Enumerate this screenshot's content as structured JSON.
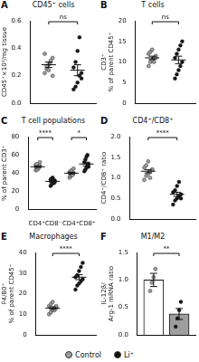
{
  "chart_data": [
    {
      "panel": "A",
      "type": "scatter",
      "title": "CD45⁺ cells",
      "y_label": [
        "CD45⁺×10³/mg tissue"
      ],
      "categories": [
        null
      ],
      "tick_labels": "y",
      "grid": false,
      "ylim": [
        0,
        0.6
      ],
      "yticks": [
        {
          "value": 0,
          "label": "0.0"
        },
        0.2,
        0.4,
        0.6
      ],
      "series": [
        {
          "name": "Control",
          "color": "#9e9e9e",
          "values": [
            [
              0.22,
              0.25,
              0.28,
              0.3,
              0.33,
              0.36,
              0.27,
              0.24,
              0.31,
              0.2
            ]
          ],
          "mean": [
            0.28
          ],
          "sem": [
            0.02
          ]
        },
        {
          "name": "Li⁺",
          "color": "#111111",
          "values": [
            [
              0.1,
              0.12,
              0.15,
              0.2,
              0.22,
              0.26,
              0.3,
              0.38,
              0.48,
              0.18
            ]
          ],
          "mean": [
            0.24
          ],
          "sem": [
            0.04
          ]
        }
      ],
      "significance": [
        "ns"
      ]
    },
    {
      "panel": "B",
      "type": "scatter",
      "title": "T cells",
      "y_label": [
        "CD3⁺",
        "% of parent CD45⁺"
      ],
      "categories": [
        null
      ],
      "tick_labels": "y",
      "grid": false,
      "ylim": [
        0,
        20
      ],
      "yticks": [
        0,
        5,
        10,
        15,
        20
      ],
      "series": [
        {
          "name": "Control",
          "color": "#9e9e9e",
          "values": [
            [
              9,
              10,
              10.5,
              11,
              11.5,
              12,
              12.5,
              13,
              10,
              11
            ]
          ],
          "mean": [
            11
          ],
          "sem": [
            0.4
          ]
        },
        {
          "name": "Li⁺",
          "color": "#111111",
          "values": [
            [
              6,
              7,
              8,
              9,
              10,
              11,
              12,
              13,
              14,
              15
            ]
          ],
          "mean": [
            10.5
          ],
          "sem": [
            0.9
          ]
        }
      ],
      "significance": [
        "ns"
      ]
    },
    {
      "panel": "C",
      "type": "scatter",
      "title": "T cell populations",
      "y_label": [
        "% of parent CD3⁺"
      ],
      "categories": [
        "CD4⁺CD8⁻",
        "CD4⁺CD8⁺"
      ],
      "grid": false,
      "ylim": [
        0,
        80
      ],
      "yticks": [
        0,
        20,
        40,
        60,
        80
      ],
      "series": [
        {
          "name": "Control",
          "color": "#9e9e9e",
          "values": [
            [
              43,
              45,
              46,
              47,
              48,
              49,
              50,
              44,
              46,
              52
            ],
            [
              35,
              37,
              38,
              39,
              40,
              41,
              42,
              43,
              38,
              45
            ]
          ],
          "mean": [
            47,
            40
          ],
          "sem": [
            0.8,
            0.9
          ]
        },
        {
          "name": "Li⁺",
          "color": "#111111",
          "values": [
            [
              26,
              28,
              30,
              31,
              32,
              33,
              34,
              35,
              29,
              30
            ],
            [
              42,
              44,
              46,
              48,
              50,
              52,
              55,
              58,
              60,
              47
            ]
          ],
          "mean": [
            31,
            50
          ],
          "sem": [
            0.9,
            2
          ]
        }
      ],
      "significance": [
        "****",
        "*"
      ]
    },
    {
      "panel": "D",
      "type": "scatter",
      "title": "CD4⁺/CD8⁺",
      "y_label": [
        "CD4⁺/CD8⁺ ratio"
      ],
      "categories": [
        null
      ],
      "tick_labels": "y",
      "grid": false,
      "ylim": [
        0,
        2
      ],
      "yticks": [
        {
          "value": 0,
          "label": "0.0"
        },
        0.5,
        {
          "value": 1,
          "label": "1.0"
        },
        1.5,
        {
          "value": 2,
          "label": "2.0"
        }
      ],
      "series": [
        {
          "name": "Control",
          "color": "#9e9e9e",
          "values": [
            [
              0.95,
              1.05,
              1.1,
              1.15,
              1.2,
              1.25,
              1.3,
              1.4,
              1.0,
              1.2
            ]
          ],
          "mean": [
            1.16
          ],
          "sem": [
            0.04
          ]
        },
        {
          "name": "Li⁺",
          "color": "#111111",
          "values": [
            [
              0.35,
              0.45,
              0.5,
              0.55,
              0.6,
              0.65,
              0.7,
              0.8,
              0.9,
              0.5
            ]
          ],
          "mean": [
            0.6
          ],
          "sem": [
            0.05
          ]
        }
      ],
      "significance": [
        "****"
      ]
    },
    {
      "panel": "E",
      "type": "scatter",
      "title": "Macrophages",
      "y_label": [
        "F4/80⁺",
        "% of parent CD45⁺"
      ],
      "categories": [
        null
      ],
      "tick_labels": "y",
      "grid": false,
      "ylim": [
        0,
        40
      ],
      "yticks": [
        0,
        10,
        20,
        30,
        40
      ],
      "series": [
        {
          "name": "Control",
          "color": "#9e9e9e",
          "values": [
            [
              10,
              11,
              12,
              13,
              13,
              14,
              15,
              16,
              12,
              14
            ]
          ],
          "mean": [
            13
          ],
          "sem": [
            0.6
          ]
        },
        {
          "name": "Li⁺",
          "color": "#111111",
          "values": [
            [
              22,
              24,
              25,
              26,
              27,
              28,
              29,
              31,
              33,
              35
            ]
          ],
          "mean": [
            28
          ],
          "sem": [
            1.2
          ]
        }
      ],
      "significance": [
        "****"
      ]
    },
    {
      "panel": "F",
      "type": "bar",
      "title": "M1/M2",
      "y_label": [
        "IL-12β/",
        "Arg-1 mRNA ratio"
      ],
      "categories": [
        null
      ],
      "tick_labels": "y",
      "grid": false,
      "legend": "bottom",
      "colors": [
        "#ffffff",
        "#9e9e9e"
      ],
      "ylim": [
        0,
        1.5
      ],
      "yticks": [
        {
          "value": 0,
          "label": "0.0"
        },
        0.5,
        {
          "value": 1,
          "label": "1.0"
        },
        1.5
      ],
      "series": [
        {
          "name": "Control",
          "color": "#9e9e9e",
          "values": [
            [
              0.8,
              0.95,
              1.05,
              1.2
            ]
          ],
          "mean": [
            1.0
          ],
          "sem": [
            0.12
          ]
        },
        {
          "name": "Li⁺",
          "color": "#111111",
          "values": [
            [
              0.15,
              0.3,
              0.45,
              0.6
            ]
          ],
          "mean": [
            0.38
          ],
          "sem": [
            0.1
          ]
        }
      ],
      "significance": [
        "**"
      ]
    }
  ]
}
